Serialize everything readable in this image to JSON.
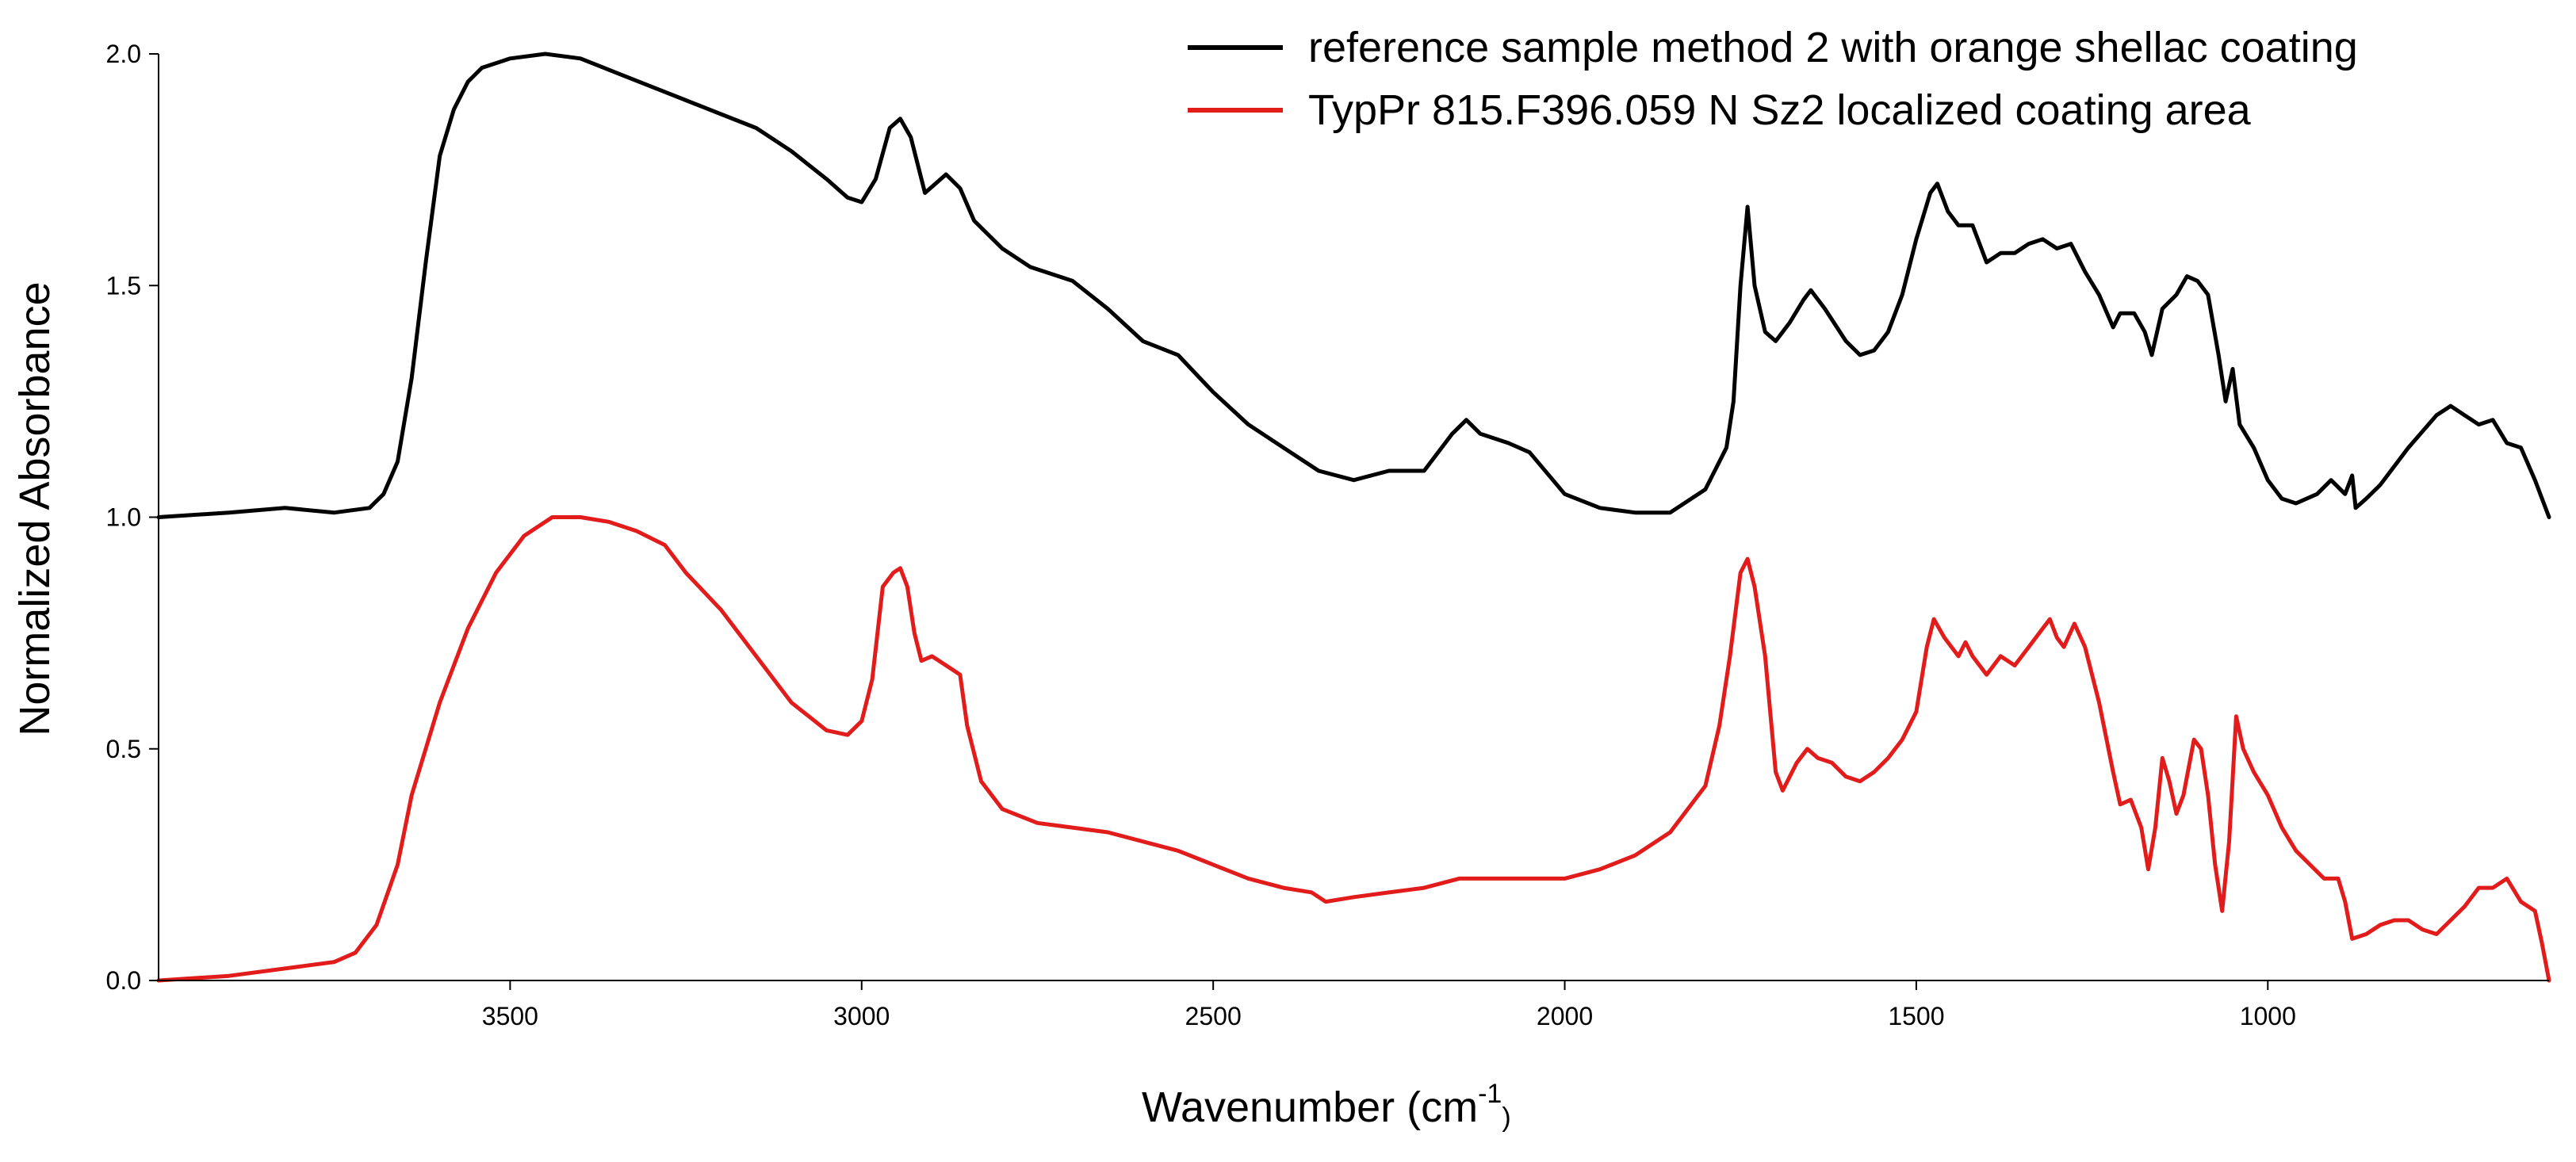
{
  "chart_data": {
    "type": "line",
    "title": "",
    "xlabel": "Wavenumber (cm",
    "xlabel_superscript": "-1",
    "xlabel_suffix": ")",
    "ylabel": "Normalized Absorbance",
    "xlim": [
      4000,
      600
    ],
    "ylim": [
      0,
      2.0
    ],
    "x_reversed": true,
    "grid": false,
    "legend_position": "top-right",
    "x_ticks": [
      3500,
      3000,
      2500,
      2000,
      1500,
      1000
    ],
    "x_tick_labels": [
      "3500",
      "3000",
      "2500",
      "2000",
      "1500",
      "1000"
    ],
    "y_ticks": [
      0,
      0.5,
      1.0,
      1.5,
      2.0
    ],
    "y_tick_labels": [
      "0.0",
      "0.5",
      "1.0",
      "1.5",
      "2.0"
    ],
    "series": [
      {
        "name": "reference sample method 2 with orange shellac coating",
        "color": "#000000",
        "points": [
          [
            4000,
            1.0
          ],
          [
            3900,
            1.01
          ],
          [
            3820,
            1.02
          ],
          [
            3750,
            1.01
          ],
          [
            3700,
            1.02
          ],
          [
            3680,
            1.05
          ],
          [
            3660,
            1.12
          ],
          [
            3640,
            1.3
          ],
          [
            3620,
            1.55
          ],
          [
            3600,
            1.78
          ],
          [
            3580,
            1.88
          ],
          [
            3560,
            1.94
          ],
          [
            3540,
            1.97
          ],
          [
            3500,
            1.99
          ],
          [
            3450,
            2.0
          ],
          [
            3400,
            1.99
          ],
          [
            3350,
            1.96
          ],
          [
            3300,
            1.93
          ],
          [
            3250,
            1.9
          ],
          [
            3200,
            1.87
          ],
          [
            3150,
            1.84
          ],
          [
            3100,
            1.79
          ],
          [
            3050,
            1.73
          ],
          [
            3020,
            1.69
          ],
          [
            3000,
            1.68
          ],
          [
            2980,
            1.73
          ],
          [
            2960,
            1.84
          ],
          [
            2945,
            1.86
          ],
          [
            2930,
            1.82
          ],
          [
            2910,
            1.7
          ],
          [
            2895,
            1.72
          ],
          [
            2880,
            1.74
          ],
          [
            2860,
            1.71
          ],
          [
            2840,
            1.64
          ],
          [
            2800,
            1.58
          ],
          [
            2760,
            1.54
          ],
          [
            2700,
            1.51
          ],
          [
            2650,
            1.45
          ],
          [
            2600,
            1.38
          ],
          [
            2550,
            1.35
          ],
          [
            2500,
            1.27
          ],
          [
            2450,
            1.2
          ],
          [
            2400,
            1.15
          ],
          [
            2350,
            1.1
          ],
          [
            2300,
            1.08
          ],
          [
            2250,
            1.1
          ],
          [
            2200,
            1.1
          ],
          [
            2160,
            1.18
          ],
          [
            2140,
            1.21
          ],
          [
            2120,
            1.18
          ],
          [
            2080,
            1.16
          ],
          [
            2050,
            1.14
          ],
          [
            2000,
            1.05
          ],
          [
            1950,
            1.02
          ],
          [
            1900,
            1.01
          ],
          [
            1850,
            1.01
          ],
          [
            1800,
            1.06
          ],
          [
            1770,
            1.15
          ],
          [
            1760,
            1.25
          ],
          [
            1750,
            1.5
          ],
          [
            1740,
            1.67
          ],
          [
            1730,
            1.5
          ],
          [
            1715,
            1.4
          ],
          [
            1700,
            1.38
          ],
          [
            1680,
            1.42
          ],
          [
            1660,
            1.47
          ],
          [
            1650,
            1.49
          ],
          [
            1630,
            1.45
          ],
          [
            1600,
            1.38
          ],
          [
            1580,
            1.35
          ],
          [
            1560,
            1.36
          ],
          [
            1540,
            1.4
          ],
          [
            1520,
            1.48
          ],
          [
            1500,
            1.6
          ],
          [
            1480,
            1.7
          ],
          [
            1470,
            1.72
          ],
          [
            1455,
            1.66
          ],
          [
            1440,
            1.63
          ],
          [
            1420,
            1.63
          ],
          [
            1400,
            1.55
          ],
          [
            1380,
            1.57
          ],
          [
            1360,
            1.57
          ],
          [
            1340,
            1.59
          ],
          [
            1320,
            1.6
          ],
          [
            1300,
            1.58
          ],
          [
            1280,
            1.59
          ],
          [
            1260,
            1.53
          ],
          [
            1240,
            1.48
          ],
          [
            1220,
            1.41
          ],
          [
            1210,
            1.44
          ],
          [
            1190,
            1.44
          ],
          [
            1175,
            1.4
          ],
          [
            1165,
            1.35
          ],
          [
            1150,
            1.45
          ],
          [
            1130,
            1.48
          ],
          [
            1115,
            1.52
          ],
          [
            1100,
            1.51
          ],
          [
            1085,
            1.48
          ],
          [
            1070,
            1.35
          ],
          [
            1060,
            1.25
          ],
          [
            1050,
            1.32
          ],
          [
            1040,
            1.2
          ],
          [
            1020,
            1.15
          ],
          [
            1000,
            1.08
          ],
          [
            980,
            1.04
          ],
          [
            960,
            1.03
          ],
          [
            930,
            1.05
          ],
          [
            910,
            1.08
          ],
          [
            890,
            1.05
          ],
          [
            880,
            1.09
          ],
          [
            875,
            1.02
          ],
          [
            860,
            1.04
          ],
          [
            840,
            1.07
          ],
          [
            800,
            1.15
          ],
          [
            760,
            1.22
          ],
          [
            740,
            1.24
          ],
          [
            720,
            1.22
          ],
          [
            700,
            1.2
          ],
          [
            680,
            1.21
          ],
          [
            660,
            1.16
          ],
          [
            640,
            1.15
          ],
          [
            620,
            1.08
          ],
          [
            600,
            1.0
          ]
        ]
      },
      {
        "name": "TypPr 815.F396.059 N Sz2 localized coating area",
        "color": "#e21b1b",
        "points": [
          [
            4000,
            0.0
          ],
          [
            3900,
            0.01
          ],
          [
            3800,
            0.03
          ],
          [
            3750,
            0.04
          ],
          [
            3720,
            0.06
          ],
          [
            3690,
            0.12
          ],
          [
            3660,
            0.25
          ],
          [
            3640,
            0.4
          ],
          [
            3600,
            0.6
          ],
          [
            3560,
            0.76
          ],
          [
            3520,
            0.88
          ],
          [
            3480,
            0.96
          ],
          [
            3440,
            1.0
          ],
          [
            3400,
            1.0
          ],
          [
            3360,
            0.99
          ],
          [
            3320,
            0.97
          ],
          [
            3280,
            0.94
          ],
          [
            3250,
            0.88
          ],
          [
            3200,
            0.8
          ],
          [
            3150,
            0.7
          ],
          [
            3100,
            0.6
          ],
          [
            3050,
            0.54
          ],
          [
            3020,
            0.53
          ],
          [
            3000,
            0.56
          ],
          [
            2985,
            0.65
          ],
          [
            2970,
            0.85
          ],
          [
            2955,
            0.88
          ],
          [
            2945,
            0.89
          ],
          [
            2935,
            0.85
          ],
          [
            2925,
            0.75
          ],
          [
            2915,
            0.69
          ],
          [
            2900,
            0.7
          ],
          [
            2880,
            0.68
          ],
          [
            2860,
            0.66
          ],
          [
            2850,
            0.55
          ],
          [
            2830,
            0.43
          ],
          [
            2800,
            0.37
          ],
          [
            2750,
            0.34
          ],
          [
            2700,
            0.33
          ],
          [
            2650,
            0.32
          ],
          [
            2600,
            0.3
          ],
          [
            2550,
            0.28
          ],
          [
            2500,
            0.25
          ],
          [
            2450,
            0.22
          ],
          [
            2400,
            0.2
          ],
          [
            2360,
            0.19
          ],
          [
            2340,
            0.17
          ],
          [
            2300,
            0.18
          ],
          [
            2250,
            0.19
          ],
          [
            2200,
            0.2
          ],
          [
            2150,
            0.22
          ],
          [
            2100,
            0.22
          ],
          [
            2050,
            0.22
          ],
          [
            2000,
            0.22
          ],
          [
            1950,
            0.24
          ],
          [
            1900,
            0.27
          ],
          [
            1850,
            0.32
          ],
          [
            1800,
            0.42
          ],
          [
            1780,
            0.55
          ],
          [
            1765,
            0.7
          ],
          [
            1750,
            0.88
          ],
          [
            1740,
            0.91
          ],
          [
            1730,
            0.85
          ],
          [
            1715,
            0.7
          ],
          [
            1700,
            0.45
          ],
          [
            1690,
            0.41
          ],
          [
            1670,
            0.47
          ],
          [
            1655,
            0.5
          ],
          [
            1640,
            0.48
          ],
          [
            1620,
            0.47
          ],
          [
            1600,
            0.44
          ],
          [
            1580,
            0.43
          ],
          [
            1560,
            0.45
          ],
          [
            1540,
            0.48
          ],
          [
            1520,
            0.52
          ],
          [
            1500,
            0.58
          ],
          [
            1485,
            0.72
          ],
          [
            1475,
            0.78
          ],
          [
            1460,
            0.74
          ],
          [
            1440,
            0.7
          ],
          [
            1430,
            0.73
          ],
          [
            1420,
            0.7
          ],
          [
            1400,
            0.66
          ],
          [
            1380,
            0.7
          ],
          [
            1360,
            0.68
          ],
          [
            1340,
            0.72
          ],
          [
            1320,
            0.76
          ],
          [
            1310,
            0.78
          ],
          [
            1300,
            0.74
          ],
          [
            1290,
            0.72
          ],
          [
            1275,
            0.77
          ],
          [
            1260,
            0.72
          ],
          [
            1240,
            0.6
          ],
          [
            1220,
            0.45
          ],
          [
            1210,
            0.38
          ],
          [
            1195,
            0.39
          ],
          [
            1180,
            0.33
          ],
          [
            1170,
            0.24
          ],
          [
            1160,
            0.33
          ],
          [
            1150,
            0.48
          ],
          [
            1140,
            0.43
          ],
          [
            1130,
            0.36
          ],
          [
            1120,
            0.4
          ],
          [
            1105,
            0.52
          ],
          [
            1095,
            0.5
          ],
          [
            1085,
            0.4
          ],
          [
            1075,
            0.25
          ],
          [
            1065,
            0.15
          ],
          [
            1055,
            0.3
          ],
          [
            1045,
            0.57
          ],
          [
            1035,
            0.5
          ],
          [
            1020,
            0.45
          ],
          [
            1000,
            0.4
          ],
          [
            980,
            0.33
          ],
          [
            960,
            0.28
          ],
          [
            940,
            0.25
          ],
          [
            920,
            0.22
          ],
          [
            900,
            0.22
          ],
          [
            890,
            0.17
          ],
          [
            880,
            0.09
          ],
          [
            860,
            0.1
          ],
          [
            840,
            0.12
          ],
          [
            820,
            0.13
          ],
          [
            800,
            0.13
          ],
          [
            780,
            0.11
          ],
          [
            760,
            0.1
          ],
          [
            740,
            0.13
          ],
          [
            720,
            0.16
          ],
          [
            700,
            0.2
          ],
          [
            680,
            0.2
          ],
          [
            660,
            0.22
          ],
          [
            640,
            0.17
          ],
          [
            620,
            0.15
          ],
          [
            610,
            0.08
          ],
          [
            600,
            0.0
          ]
        ]
      }
    ]
  }
}
